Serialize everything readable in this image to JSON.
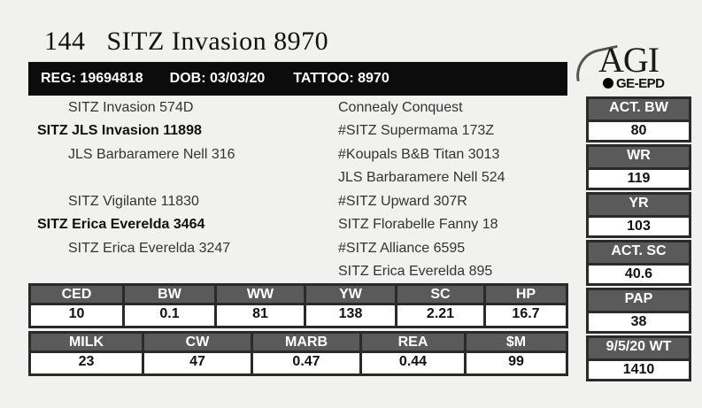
{
  "header": {
    "lot": "144",
    "name": "SITZ Invasion 8970",
    "reg": "REG: 19694818",
    "dob": "DOB: 03/03/20",
    "tattoo": "TATTOO: 8970"
  },
  "logo": {
    "agi": "AGI",
    "ge": "GE-EPD"
  },
  "pedigree": {
    "sire_sire": "SITZ Invasion 574D",
    "sire": "SITZ JLS Invasion 11898",
    "sire_dam": "JLS Barbaramere Nell 316",
    "dam_sire": "SITZ Vigilante 11830",
    "dam": "SITZ Erica Everelda 3464",
    "dam_dam": "SITZ Erica Everelda 3247",
    "right": [
      "Connealy Conquest",
      "#SITZ Supermama 173Z",
      "#Koupals B&B Titan 3013",
      "JLS Barbaramere Nell 524",
      "#SITZ Upward 307R",
      "SITZ Florabelle Fanny 18",
      "#SITZ Alliance 6595",
      "SITZ Erica Everelda 895"
    ]
  },
  "epd_row1": {
    "headers": [
      "CED",
      "BW",
      "WW",
      "YW",
      "SC",
      "HP"
    ],
    "values": [
      "10",
      "0.1",
      "81",
      "138",
      "2.21",
      "16.7"
    ]
  },
  "epd_row2": {
    "headers": [
      "MILK",
      "CW",
      "MARB",
      "REA",
      "$M"
    ],
    "values": [
      "23",
      "47",
      "0.47",
      "0.44",
      "99"
    ]
  },
  "side": [
    {
      "label": "ACT. BW",
      "value": "80"
    },
    {
      "label": "WR",
      "value": "119"
    },
    {
      "label": "YR",
      "value": "103"
    },
    {
      "label": "ACT. SC",
      "value": "40.6"
    },
    {
      "label": "PAP",
      "value": "38"
    },
    {
      "label": "9/5/20 WT",
      "value": "1410"
    }
  ]
}
